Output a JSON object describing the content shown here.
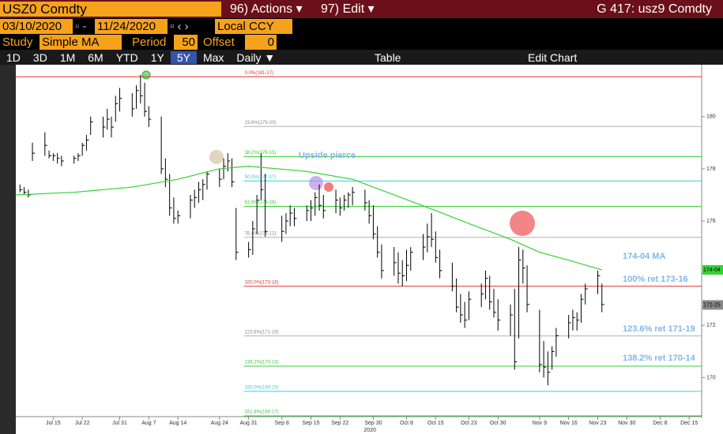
{
  "toolbar": {
    "ticker": "USZ0 Comdty",
    "actions": "96) Actions ▾",
    "edit": "97) Edit ▾",
    "title": "G 417: usz9 Comdty",
    "start_date": "03/10/2020",
    "end_date": "11/24/2020",
    "currency": "Local CCY",
    "study_label": "Study",
    "study": "Simple MA",
    "period_label": "Period",
    "period": "50",
    "offset_label": "Offset",
    "offset": "0",
    "ranges": [
      "1D",
      "3D",
      "1M",
      "6M",
      "YTD",
      "1Y",
      "5Y",
      "Max",
      "Daily ▼"
    ],
    "table": "Table",
    "edit_chart": "Edit Chart"
  },
  "chart_data": {
    "type": "ohlc",
    "year_label": "2020",
    "xlim": [
      "2020-07-06",
      "2020-12-18"
    ],
    "xticks": [
      {
        "value": "2020-07-15",
        "label": "Jul 15"
      },
      {
        "value": "2020-07-22",
        "label": "Jul 22"
      },
      {
        "value": "2020-07-31",
        "label": "Jul 31"
      },
      {
        "value": "2020-08-07",
        "label": "Aug 7"
      },
      {
        "value": "2020-08-14",
        "label": "Aug 14"
      },
      {
        "value": "2020-08-24",
        "label": "Aug 24"
      },
      {
        "value": "2020-08-31",
        "label": "Aug 31"
      },
      {
        "value": "2020-09-08",
        "label": "Sep 8"
      },
      {
        "value": "2020-09-15",
        "label": "Sep 15"
      },
      {
        "value": "2020-09-22",
        "label": "Sep 22"
      },
      {
        "value": "2020-09-30",
        "label": "Sep 30"
      },
      {
        "value": "2020-10-08",
        "label": "Oct 8"
      },
      {
        "value": "2020-10-15",
        "label": "Oct 15"
      },
      {
        "value": "2020-10-23",
        "label": "Oct 23"
      },
      {
        "value": "2020-10-30",
        "label": "Oct 30"
      },
      {
        "value": "2020-11-09",
        "label": "Nov 9"
      },
      {
        "value": "2020-11-16",
        "label": "Nov 16"
      },
      {
        "value": "2020-11-23",
        "label": "Nov 23"
      },
      {
        "value": "2020-11-30",
        "label": "Nov 30"
      },
      {
        "value": "2020-12-08",
        "label": "Dec 8"
      },
      {
        "value": "2020-12-15",
        "label": "Dec 15"
      }
    ],
    "ylim": [
      168.5,
      181.9
    ],
    "yticks": [
      170,
      172,
      174,
      176,
      178,
      180
    ],
    "bar_color": "#000000",
    "ohlc": {
      "x": [
        "2020-07-07",
        "2020-07-08",
        "2020-07-09",
        "2020-07-10",
        "2020-07-13",
        "2020-07-14",
        "2020-07-15",
        "2020-07-16",
        "2020-07-17",
        "2020-07-20",
        "2020-07-21",
        "2020-07-22",
        "2020-07-23",
        "2020-07-24",
        "2020-07-27",
        "2020-07-28",
        "2020-07-29",
        "2020-07-30",
        "2020-07-31",
        "2020-08-03",
        "2020-08-04",
        "2020-08-05",
        "2020-08-06",
        "2020-08-07",
        "2020-08-10",
        "2020-08-11",
        "2020-08-12",
        "2020-08-13",
        "2020-08-14",
        "2020-08-17",
        "2020-08-18",
        "2020-08-19",
        "2020-08-20",
        "2020-08-21",
        "2020-08-24",
        "2020-08-25",
        "2020-08-26",
        "2020-08-27",
        "2020-08-28",
        "2020-08-31",
        "2020-09-01",
        "2020-09-02",
        "2020-09-03",
        "2020-09-04",
        "2020-09-08",
        "2020-09-09",
        "2020-09-10",
        "2020-09-11",
        "2020-09-14",
        "2020-09-15",
        "2020-09-16",
        "2020-09-17",
        "2020-09-18",
        "2020-09-21",
        "2020-09-22",
        "2020-09-23",
        "2020-09-24",
        "2020-09-25",
        "2020-09-28",
        "2020-09-29",
        "2020-09-30",
        "2020-10-01",
        "2020-10-02",
        "2020-10-05",
        "2020-10-06",
        "2020-10-07",
        "2020-10-08",
        "2020-10-09",
        "2020-10-12",
        "2020-10-13",
        "2020-10-14",
        "2020-10-15",
        "2020-10-16",
        "2020-10-19",
        "2020-10-20",
        "2020-10-21",
        "2020-10-22",
        "2020-10-23",
        "2020-10-26",
        "2020-10-27",
        "2020-10-28",
        "2020-10-29",
        "2020-10-30",
        "2020-11-02",
        "2020-11-03",
        "2020-11-04",
        "2020-11-05",
        "2020-11-06",
        "2020-11-09",
        "2020-11-10",
        "2020-11-11",
        "2020-11-12",
        "2020-11-13",
        "2020-11-16",
        "2020-11-17",
        "2020-11-18",
        "2020-11-19",
        "2020-11-20",
        "2020-11-23",
        "2020-11-24"
      ],
      "high": [
        177.4,
        177.3,
        177.2,
        179.0,
        179.4,
        178.7,
        178.6,
        178.6,
        178.5,
        178.5,
        178.6,
        179.0,
        179.3,
        180.0,
        180.0,
        180.3,
        180.0,
        180.8,
        181.1,
        180.9,
        181.2,
        181.6,
        181.3,
        180.4,
        180.0,
        178.4,
        177.8,
        176.9,
        176.4,
        177.0,
        177.2,
        177.5,
        177.6,
        177.9,
        178.0,
        178.4,
        178.6,
        178.4,
        176.5,
        175.2,
        176.0,
        177.0,
        178.6,
        177.8,
        176.2,
        176.3,
        176.6,
        176.5,
        176.6,
        176.8,
        177.1,
        177.4,
        177.0,
        177.2,
        176.9,
        177.0,
        177.1,
        177.3,
        177.2,
        176.8,
        176.6,
        175.8,
        175.1,
        175.0,
        174.8,
        174.5,
        174.9,
        175.0,
        175.5,
        175.9,
        176.3,
        175.6,
        174.9,
        174.4,
        173.8,
        173.2,
        172.9,
        173.3,
        173.6,
        174.1,
        173.9,
        173.4,
        173.0,
        172.8,
        173.4,
        175.0,
        174.9,
        174.3,
        172.6,
        171.4,
        171.0,
        171.2,
        171.9,
        172.4,
        172.6,
        172.5,
        173.2,
        173.6,
        174.1,
        173.6
      ],
      "low": [
        177.1,
        177.0,
        176.9,
        178.3,
        178.5,
        178.4,
        178.3,
        178.2,
        178.1,
        178.2,
        178.3,
        178.5,
        178.7,
        179.3,
        179.2,
        179.5,
        179.2,
        179.8,
        180.2,
        180.0,
        180.3,
        180.5,
        180.0,
        179.6,
        177.8,
        177.3,
        176.2,
        175.9,
        175.9,
        176.1,
        176.5,
        176.7,
        176.8,
        177.2,
        177.3,
        177.6,
        177.9,
        177.3,
        174.5,
        174.6,
        174.7,
        175.5,
        176.8,
        175.4,
        175.2,
        175.5,
        175.8,
        175.8,
        176.0,
        176.0,
        176.2,
        176.4,
        176.1,
        176.3,
        176.2,
        176.4,
        176.5,
        176.6,
        176.4,
        175.9,
        175.3,
        174.6,
        173.8,
        173.9,
        173.6,
        173.5,
        173.7,
        174.1,
        174.5,
        174.8,
        175.0,
        174.4,
        173.8,
        173.3,
        172.5,
        172.1,
        171.9,
        172.2,
        172.7,
        173.0,
        172.6,
        172.3,
        171.8,
        171.6,
        170.3,
        171.5,
        173.6,
        172.5,
        170.2,
        170.0,
        169.7,
        170.3,
        170.8,
        171.5,
        171.8,
        171.8,
        172.1,
        172.8,
        173.2,
        172.5
      ],
      "close": [
        177.2,
        177.1,
        177.0,
        178.6,
        178.9,
        178.5,
        178.5,
        178.4,
        178.3,
        178.4,
        178.5,
        178.9,
        179.1,
        179.8,
        179.6,
        179.9,
        179.6,
        180.5,
        180.7,
        180.3,
        181.0,
        180.8,
        180.2,
        179.9,
        178.0,
        177.6,
        176.5,
        176.1,
        176.2,
        176.8,
        176.9,
        177.2,
        177.4,
        177.8,
        177.6,
        178.1,
        178.3,
        177.5,
        174.8,
        174.9,
        175.7,
        176.8,
        177.2,
        175.6,
        175.6,
        176.0,
        176.3,
        176.1,
        176.4,
        176.5,
        176.9,
        176.6,
        176.4,
        176.8,
        176.5,
        176.8,
        177.0,
        177.1,
        176.7,
        176.2,
        175.5,
        174.8,
        174.1,
        174.4,
        174.0,
        173.9,
        174.3,
        174.8,
        175.0,
        175.4,
        175.3,
        174.6,
        174.1,
        173.5,
        172.7,
        172.4,
        172.2,
        173.0,
        173.2,
        173.8,
        172.9,
        172.5,
        172.2,
        172.4,
        170.6,
        174.5,
        174.2,
        172.8,
        170.5,
        170.4,
        170.2,
        171.0,
        171.6,
        172.1,
        172.3,
        172.2,
        173.0,
        173.4,
        173.9,
        172.8
      ]
    },
    "ma": {
      "color": "#35d135",
      "x": [
        "2020-07-06",
        "2020-07-20",
        "2020-08-03",
        "2020-08-14",
        "2020-08-24",
        "2020-08-31",
        "2020-09-14",
        "2020-09-25",
        "2020-10-05",
        "2020-10-15",
        "2020-10-23",
        "2020-11-02",
        "2020-11-09",
        "2020-11-16",
        "2020-11-24"
      ],
      "values": [
        177.0,
        177.1,
        177.3,
        177.6,
        178.0,
        178.1,
        177.9,
        177.6,
        177.0,
        176.4,
        175.9,
        175.3,
        174.8,
        174.5,
        174.125
      ]
    },
    "fib": [
      {
        "label": "0.0%(181-17)",
        "value": 181.53125,
        "color": "#e03030"
      },
      {
        "label": "23.6%(179-20)",
        "value": 179.625,
        "color": "#b0b0b0"
      },
      {
        "label": "38.2%(178-15)",
        "value": 178.46875,
        "color": "#35d135"
      },
      {
        "label": "50.0%(177-17)",
        "value": 177.53125,
        "color": "#30d0e0"
      },
      {
        "label": "61.8%(176-18)",
        "value": 176.5625,
        "color": "#35d135"
      },
      {
        "label": "76.4%(175-12)",
        "value": 175.375,
        "color": "#b0b0b0"
      },
      {
        "label": "100.0%(173-16)",
        "value": 173.5,
        "color": "#e03030"
      },
      {
        "label": "123.6%(171-19)",
        "value": 171.59375,
        "color": "#b0b0b0"
      },
      {
        "label": "138.2%(170-14)",
        "value": 170.4375,
        "color": "#35d135"
      },
      {
        "label": "150.0%(169-15)",
        "value": 169.46875,
        "color": "#30d0e0"
      },
      {
        "label": "161.8%(168-17)",
        "value": 168.53125,
        "color": "#35d135"
      }
    ],
    "price_tags": [
      {
        "label": "174-04",
        "value": 174.125,
        "color": "#35d135"
      },
      {
        "label": "172-25",
        "value": 172.78125,
        "color": "#888888"
      }
    ],
    "annotations": {
      "upside": "Upside pierce",
      "ma": "174-04 MA",
      "r100": "100% ret 173-16",
      "r1236": "123.6% ret 171-19",
      "r1382": "138.2% ret 170-14"
    }
  }
}
